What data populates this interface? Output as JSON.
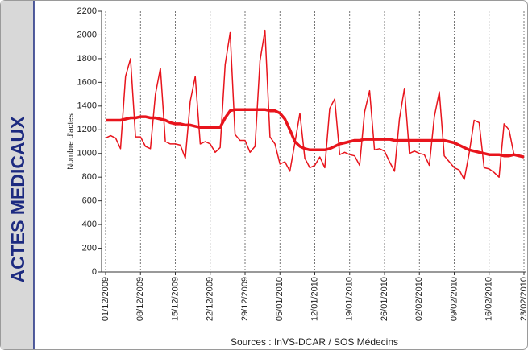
{
  "chart_data": {
    "type": "line",
    "panel_label": "ACTES MEDICAUX",
    "ylabel": "Nombre d'actes",
    "source": "Sources : InVS-DCAR / SOS Médecins",
    "categories": [
      "01/12/2009",
      null,
      null,
      null,
      null,
      null,
      null,
      "08/12/2009",
      null,
      null,
      null,
      null,
      null,
      null,
      "15/12/2009",
      null,
      null,
      null,
      null,
      null,
      null,
      "22/12/2009",
      null,
      null,
      null,
      null,
      null,
      null,
      "29/12/2009",
      null,
      null,
      null,
      null,
      null,
      null,
      "05/01/2010",
      null,
      null,
      null,
      null,
      null,
      null,
      "12/01/2010",
      null,
      null,
      null,
      null,
      null,
      null,
      "19/01/2010",
      null,
      null,
      null,
      null,
      null,
      null,
      "26/01/2010",
      null,
      null,
      null,
      null,
      null,
      null,
      "02/02/2010",
      null,
      null,
      null,
      null,
      null,
      null,
      "09/02/2010",
      null,
      null,
      null,
      null,
      null,
      null,
      "16/02/2010",
      null,
      null,
      null,
      null,
      null,
      null,
      "23/02/2010"
    ],
    "series": [
      {
        "color": "#e8141c",
        "width": 1.5,
        "values": [
          1130,
          1150,
          1130,
          1040,
          1650,
          1800,
          1140,
          1140,
          1060,
          1040,
          1500,
          1720,
          1100,
          1080,
          1080,
          1070,
          960,
          1440,
          1650,
          1080,
          1100,
          1080,
          1010,
          1050,
          1750,
          2020,
          1160,
          1110,
          1110,
          1010,
          1060,
          1780,
          2040,
          1140,
          1080,
          910,
          930,
          850,
          1090,
          1340,
          960,
          880,
          900,
          970,
          880,
          1380,
          1460,
          990,
          1010,
          990,
          980,
          900,
          1350,
          1530,
          1030,
          1040,
          1020,
          930,
          850,
          1290,
          1550,
          1000,
          1020,
          1000,
          990,
          900,
          1310,
          1520,
          980,
          930,
          880,
          860,
          780,
          1000,
          1280,
          1260,
          880,
          870,
          840,
          800,
          1250,
          1200,
          990,
          980,
          970
        ]
      },
      {
        "color": "#e8141c",
        "width": 3.5,
        "values": [
          1280,
          1280,
          1280,
          1280,
          1290,
          1300,
          1300,
          1310,
          1310,
          1300,
          1300,
          1290,
          1280,
          1260,
          1250,
          1250,
          1240,
          1240,
          1230,
          1220,
          1220,
          1220,
          1220,
          1220,
          1300,
          1360,
          1370,
          1370,
          1370,
          1370,
          1370,
          1370,
          1370,
          1360,
          1360,
          1340,
          1290,
          1200,
          1100,
          1060,
          1040,
          1030,
          1030,
          1030,
          1030,
          1040,
          1060,
          1080,
          1090,
          1100,
          1110,
          1110,
          1120,
          1120,
          1120,
          1120,
          1120,
          1120,
          1110,
          1110,
          1110,
          1110,
          1110,
          1110,
          1110,
          1110,
          1110,
          1110,
          1110,
          1100,
          1090,
          1070,
          1050,
          1030,
          1020,
          1010,
          1000,
          990,
          990,
          990,
          980,
          980,
          990,
          980,
          970
        ]
      }
    ],
    "ylim": [
      0,
      2200
    ],
    "yticks": [
      0,
      200,
      400,
      600,
      800,
      1000,
      1200,
      1400,
      1600,
      1800,
      2000,
      2200
    ],
    "grid": "x-dashed"
  }
}
